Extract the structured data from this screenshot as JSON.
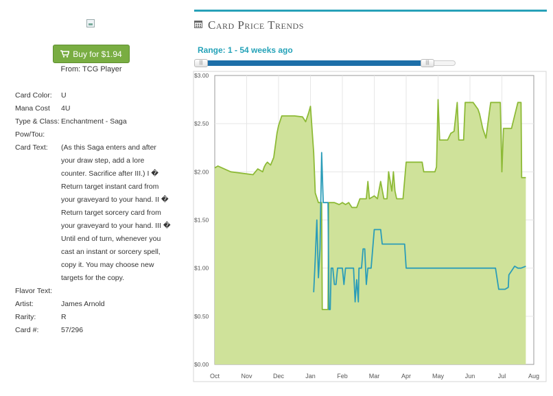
{
  "buy": {
    "label": "Buy for $1.94",
    "from": "From: TCG Player"
  },
  "details": [
    {
      "key": "Card Color:",
      "value": "U"
    },
    {
      "key": "Mana Cost",
      "value": "4U"
    },
    {
      "key": "Type & Class:",
      "value": "Enchantment - Saga"
    },
    {
      "key": "Pow/Tou:",
      "value": ""
    },
    {
      "key": "Card Text:",
      "value": "(As this Saga enters and after your draw step, add a lore counter. Sacrifice after III.) I � Return target instant card from your graveyard to your hand. II � Return target sorcery card from your graveyard to your hand. III � Until end of turn, whenever you cast an instant or sorcery spell, copy it. You may choose new targets for the copy."
    },
    {
      "key": "Flavor Text:",
      "value": ""
    },
    {
      "key": "Artist:",
      "value": "James Arnold"
    },
    {
      "key": "Rarity:",
      "value": "R"
    },
    {
      "key": "Card #:",
      "value": "57/296"
    }
  ],
  "panel": {
    "title": "Card Price Trends",
    "range_label": "Range: 1 - 54 weeks ago"
  },
  "icons": {
    "cart": "cart-icon",
    "calendar": "calendar-icon",
    "image": "broken-image-icon"
  },
  "colors": {
    "accent": "#27a1b8",
    "button": "#79ad42",
    "green_series": "#8dba36",
    "green_fill": "#cfe29a",
    "blue_series": "#2a9cb8"
  },
  "chart_data": {
    "type": "line",
    "x_unit": "months (fractional, Oct=0)",
    "ylim": [
      0,
      3.0
    ],
    "yticks": [
      "$0.00",
      "$0.50",
      "$1.00",
      "$1.50",
      "$2.00",
      "$2.50",
      "$3.00"
    ],
    "xticks": [
      "Oct",
      "Nov",
      "Dec",
      "Jan",
      "Feb",
      "Mar",
      "Apr",
      "May",
      "Jun",
      "Jul",
      "Aug"
    ],
    "grid": true,
    "series": [
      {
        "style": "area",
        "color": "#8dba36",
        "points": [
          [
            0.0,
            2.04
          ],
          [
            0.1,
            2.06
          ],
          [
            0.5,
            2.0
          ],
          [
            1.2,
            1.97
          ],
          [
            1.35,
            2.03
          ],
          [
            1.5,
            2.0
          ],
          [
            1.55,
            2.05
          ],
          [
            1.6,
            2.08
          ],
          [
            1.65,
            2.1
          ],
          [
            1.75,
            2.07
          ],
          [
            1.85,
            2.15
          ],
          [
            1.95,
            2.4
          ],
          [
            2.0,
            2.48
          ],
          [
            2.1,
            2.58
          ],
          [
            2.5,
            2.58
          ],
          [
            2.75,
            2.57
          ],
          [
            2.85,
            2.52
          ],
          [
            2.95,
            2.62
          ],
          [
            3.0,
            2.68
          ],
          [
            3.1,
            2.2
          ],
          [
            3.15,
            1.78
          ],
          [
            3.25,
            1.68
          ],
          [
            3.35,
            1.68
          ],
          [
            3.37,
            0.57
          ],
          [
            3.55,
            0.57
          ],
          [
            3.57,
            1.68
          ],
          [
            3.75,
            1.68
          ],
          [
            3.9,
            1.66
          ],
          [
            4.0,
            1.68
          ],
          [
            4.1,
            1.66
          ],
          [
            4.2,
            1.68
          ],
          [
            4.3,
            1.63
          ],
          [
            4.45,
            1.63
          ],
          [
            4.55,
            1.72
          ],
          [
            4.75,
            1.72
          ],
          [
            4.8,
            1.9
          ],
          [
            4.85,
            1.72
          ],
          [
            5.0,
            1.75
          ],
          [
            5.1,
            1.72
          ],
          [
            5.2,
            1.9
          ],
          [
            5.3,
            1.72
          ],
          [
            5.4,
            1.72
          ],
          [
            5.45,
            2.0
          ],
          [
            5.55,
            1.8
          ],
          [
            5.6,
            2.0
          ],
          [
            5.65,
            1.8
          ],
          [
            5.7,
            1.72
          ],
          [
            5.9,
            1.72
          ],
          [
            6.0,
            2.1
          ],
          [
            6.5,
            2.1
          ],
          [
            6.55,
            2.0
          ],
          [
            6.9,
            2.0
          ],
          [
            6.95,
            2.05
          ],
          [
            7.0,
            2.75
          ],
          [
            7.05,
            2.33
          ],
          [
            7.3,
            2.33
          ],
          [
            7.4,
            2.4
          ],
          [
            7.5,
            2.42
          ],
          [
            7.6,
            2.72
          ],
          [
            7.65,
            2.33
          ],
          [
            7.8,
            2.33
          ],
          [
            7.85,
            2.72
          ],
          [
            8.1,
            2.72
          ],
          [
            8.25,
            2.65
          ],
          [
            8.3,
            2.6
          ],
          [
            8.4,
            2.45
          ],
          [
            8.5,
            2.35
          ],
          [
            8.6,
            2.6
          ],
          [
            8.65,
            2.72
          ],
          [
            8.95,
            2.72
          ],
          [
            9.0,
            2.0
          ],
          [
            9.05,
            2.45
          ],
          [
            9.3,
            2.45
          ],
          [
            9.5,
            2.72
          ],
          [
            9.6,
            2.72
          ],
          [
            9.62,
            1.94
          ],
          [
            9.75,
            1.94
          ]
        ]
      },
      {
        "style": "line",
        "color": "#2a9cb8",
        "points": [
          [
            3.1,
            0.75
          ],
          [
            3.15,
            1.1
          ],
          [
            3.2,
            1.5
          ],
          [
            3.25,
            0.9
          ],
          [
            3.3,
            1.2
          ],
          [
            3.35,
            2.2
          ],
          [
            3.4,
            1.68
          ],
          [
            3.55,
            1.68
          ],
          [
            3.58,
            0.57
          ],
          [
            3.62,
            0.57
          ],
          [
            3.65,
            1.0
          ],
          [
            3.7,
            1.0
          ],
          [
            3.75,
            0.83
          ],
          [
            3.8,
            0.83
          ],
          [
            3.85,
            1.0
          ],
          [
            4.0,
            1.0
          ],
          [
            4.05,
            0.83
          ],
          [
            4.1,
            1.0
          ],
          [
            4.35,
            1.0
          ],
          [
            4.4,
            0.65
          ],
          [
            4.45,
            0.88
          ],
          [
            4.5,
            0.65
          ],
          [
            4.52,
            1.0
          ],
          [
            4.6,
            1.0
          ],
          [
            4.65,
            1.2
          ],
          [
            4.7,
            1.2
          ],
          [
            4.75,
            0.83
          ],
          [
            4.8,
            1.0
          ],
          [
            4.9,
            1.0
          ],
          [
            5.0,
            1.4
          ],
          [
            5.2,
            1.4
          ],
          [
            5.25,
            1.25
          ],
          [
            5.7,
            1.25
          ],
          [
            5.95,
            1.25
          ],
          [
            6.0,
            1.0
          ],
          [
            8.8,
            1.0
          ],
          [
            8.9,
            0.78
          ],
          [
            9.1,
            0.78
          ],
          [
            9.2,
            0.8
          ],
          [
            9.22,
            0.93
          ],
          [
            9.3,
            0.97
          ],
          [
            9.4,
            1.02
          ],
          [
            9.5,
            1.0
          ],
          [
            9.6,
            1.0
          ],
          [
            9.75,
            1.02
          ]
        ]
      }
    ]
  }
}
